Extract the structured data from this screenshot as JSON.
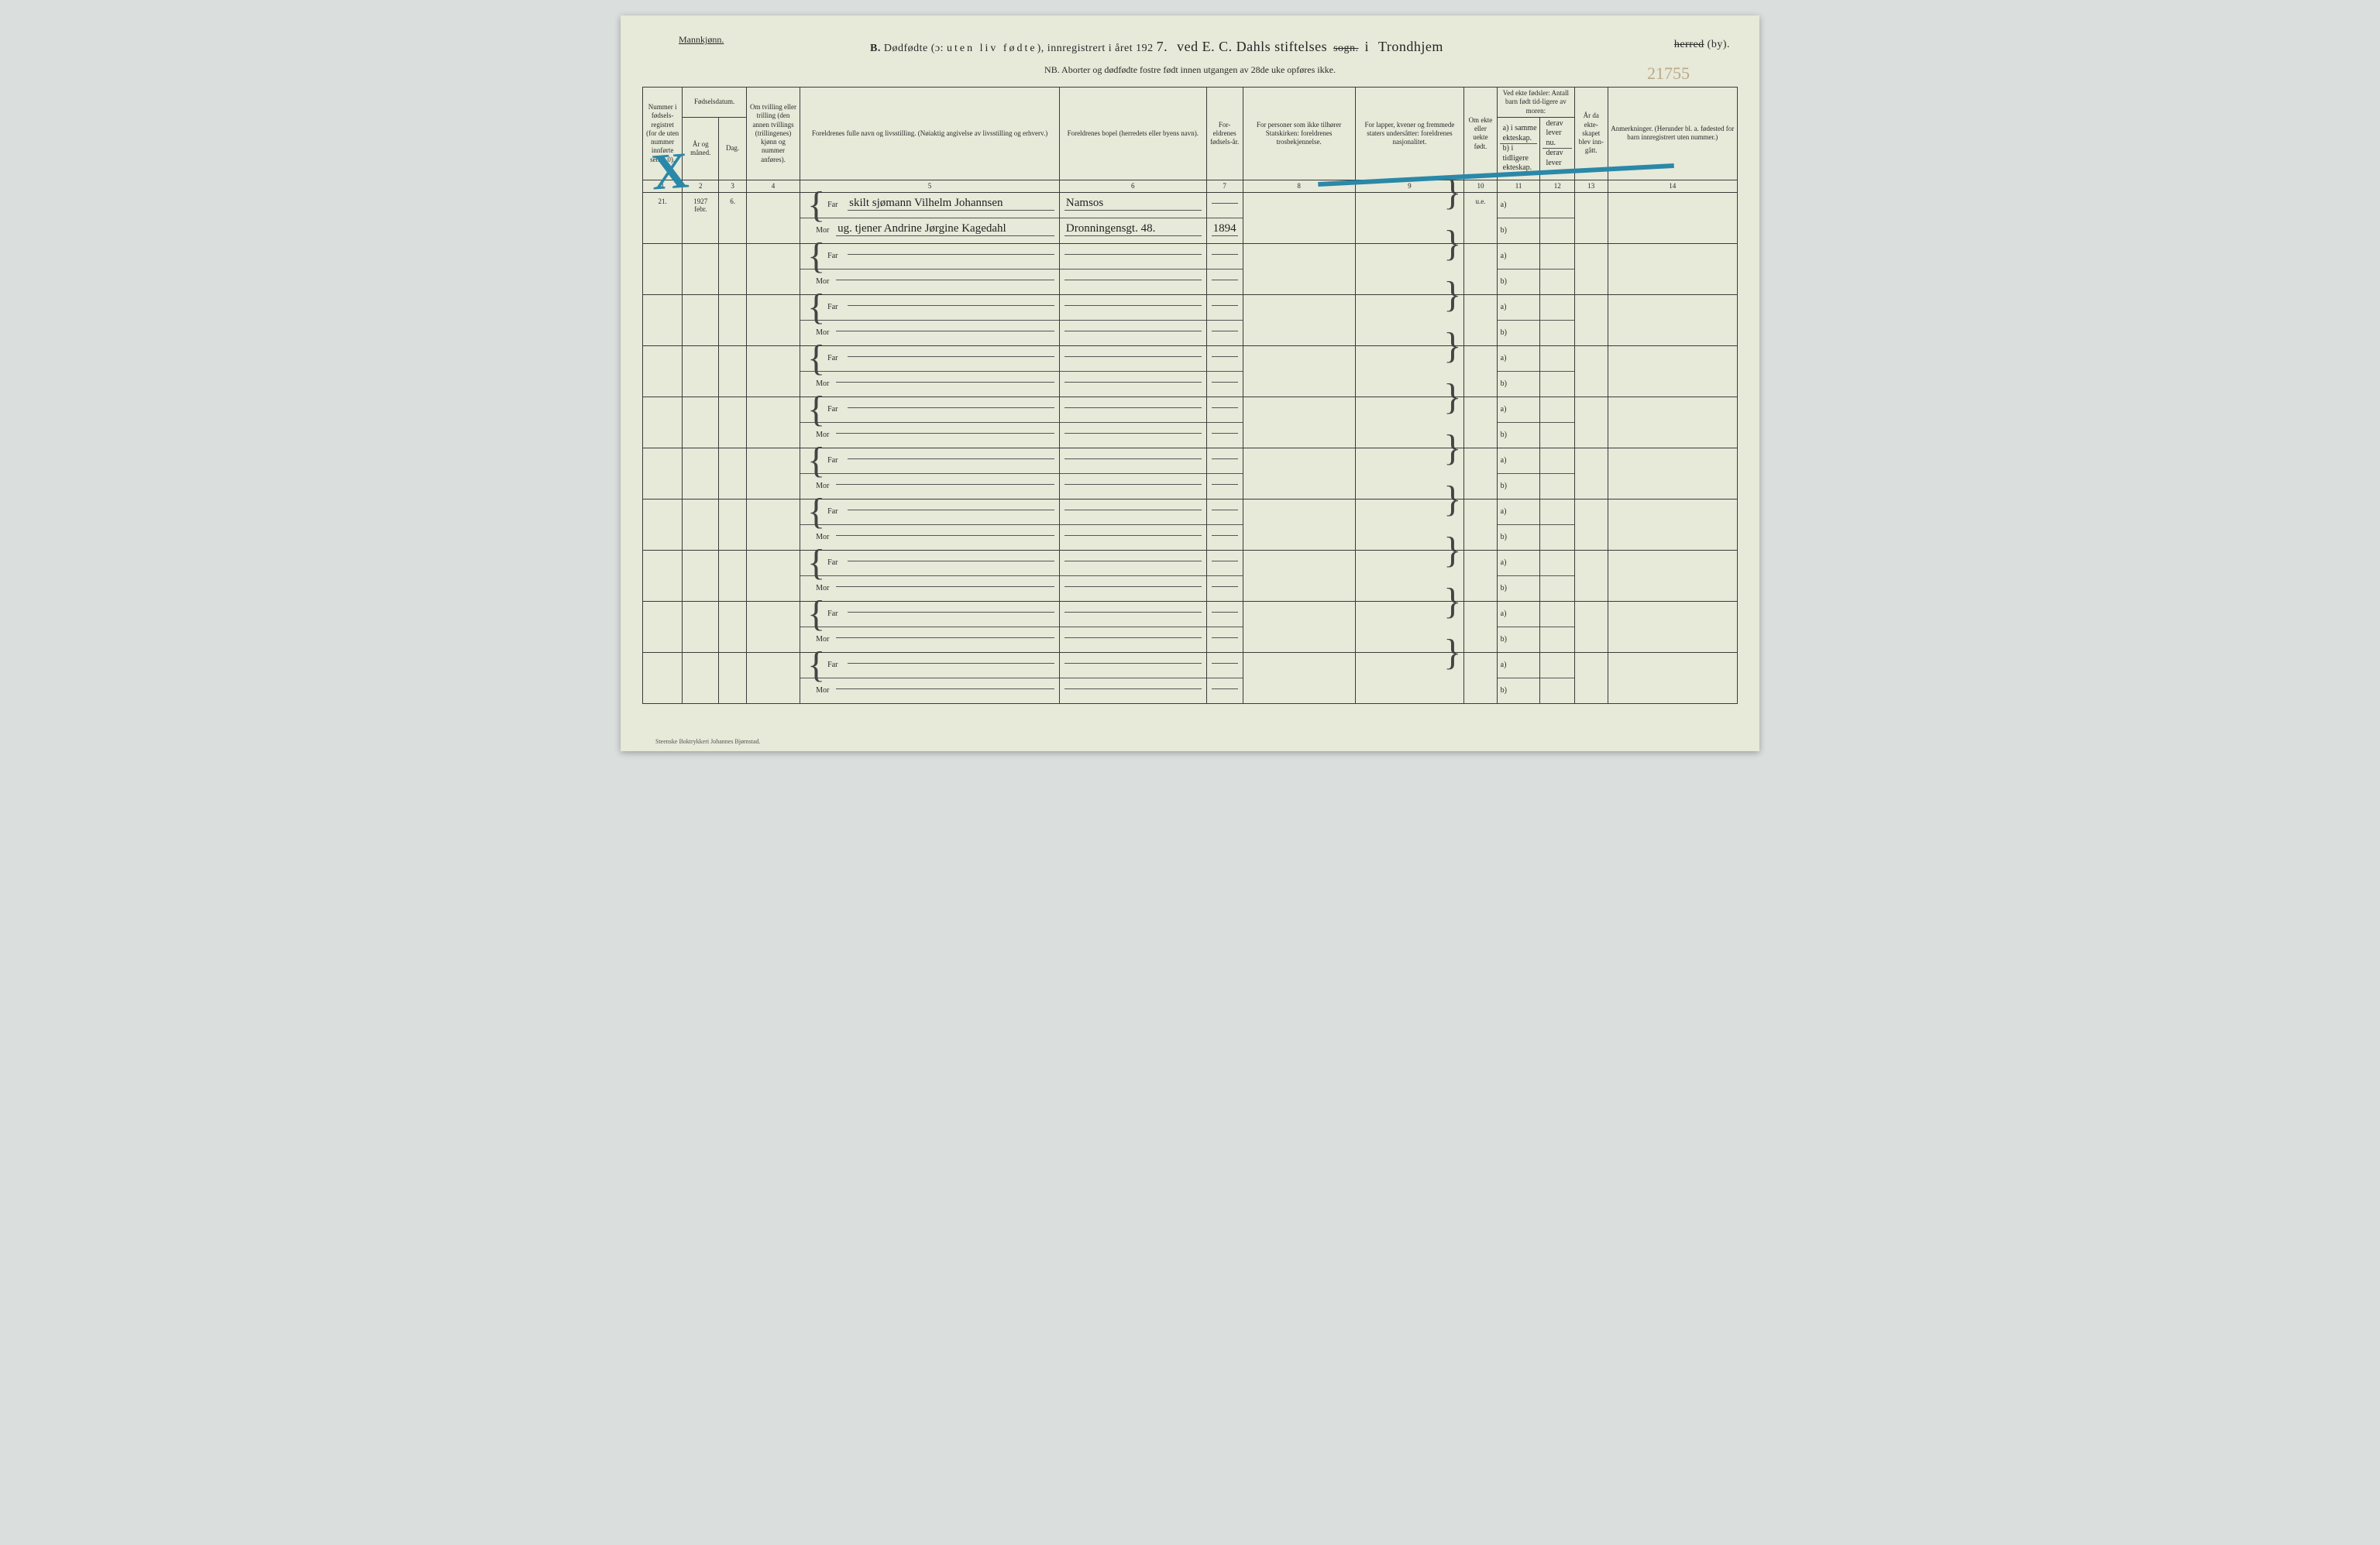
{
  "header": {
    "gender": "Mannkjønn.",
    "title_b": "B.",
    "title_main": "Dødfødte (ɔ: ",
    "title_spaced": "uten liv fødte",
    "title_after": "), innregistrert i året 192",
    "year_hand": "7.",
    "hand_place1": "ved E. C. Dahls stiftelses",
    "strike1": "sogn.",
    "hand_i": "i",
    "hand_place2": "Trondhjem",
    "strike2": "herred",
    "by": "(by).",
    "subtitle": "NB. Aborter og dødfødte fostre født innen utgangen av 28de uke opføres ikke.",
    "pencil_number": "21755"
  },
  "columns": {
    "c1": "Nummer i fødsels-registret (for de uten nummer innførte settes 0).",
    "c2_top": "Fødselsdatum.",
    "c2a": "År og måned.",
    "c2b": "Dag.",
    "c4": "Om tvilling eller trilling (den annen tvillings (trillingenes) kjønn og nummer anføres).",
    "c5": "Foreldrenes fulle navn og livsstilling. (Nøiaktig angivelse av livsstilling og erhverv.)",
    "c6": "Foreldrenes bopel (herredets eller byens navn).",
    "c7": "For-eldrenes fødsels-år.",
    "c8": "For personer som ikke tilhører Statskirken: foreldrenes trosbekjennelse.",
    "c9": "For lapper, kvener og fremmede staters undersåtter: foreldrenes nasjonalitet.",
    "c10": "Om ekte eller uekte født.",
    "c11_top": "Ved ekte fødsler: Antall barn født tid-ligere av moren:",
    "c11a": "a) i samme ekteskap.",
    "c11b": "b) i tidligere ekteskap.",
    "c12a": "derav lever nu.",
    "c12b": "derav lever nu.",
    "c13": "År da ekte-skapet blev inn-gått.",
    "c14": "Anmerkninger. (Herunder bl. a. fødested for barn innregistrert uten nummer.)"
  },
  "colnums": [
    "1",
    "2",
    "3",
    "4",
    "5",
    "6",
    "7",
    "8",
    "9",
    "10",
    "11",
    "12",
    "13",
    "14"
  ],
  "rows": [
    {
      "num": "21.",
      "year": "1927",
      "month": "febr.",
      "day": "6.",
      "far": "skilt sjømann Vilhelm Johannsen",
      "far_bopel": "Namsos",
      "far_aar": "",
      "mor": "ug. tjener Andrine Jørgine Kagedahl",
      "mor_bopel": "Dronningensgt. 48.",
      "mor_aar": "1894",
      "ekte": "u.e."
    },
    {},
    {},
    {},
    {},
    {},
    {},
    {},
    {},
    {}
  ],
  "labels": {
    "far": "Far",
    "mor": "Mor",
    "a": "a)",
    "b": "b)"
  },
  "footer": "Steenske Boktrykkeri Johannes Bjørnstad."
}
